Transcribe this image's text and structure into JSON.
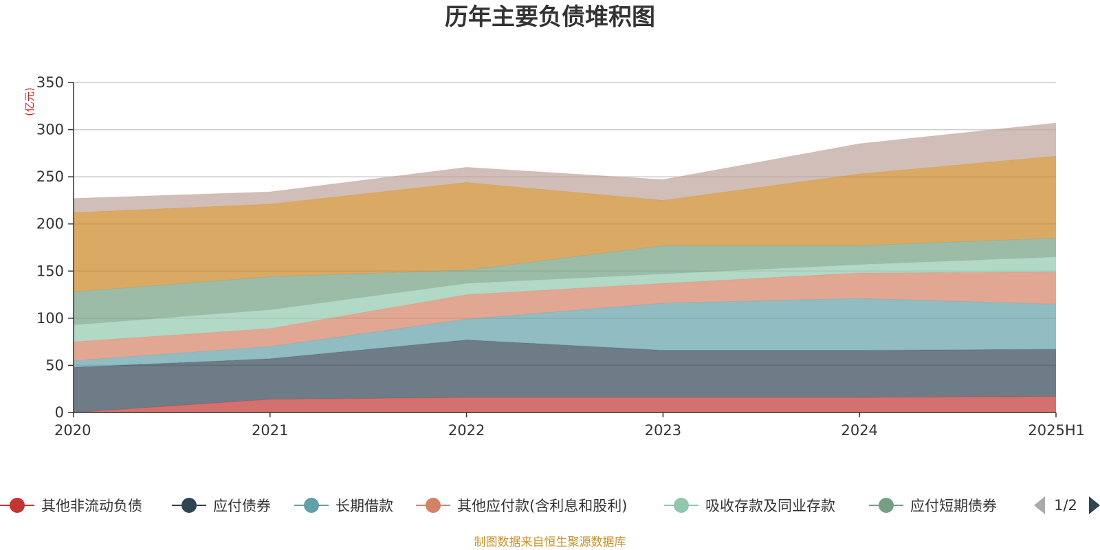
{
  "chart_data": {
    "type": "area",
    "stacked": true,
    "title": "历年主要负债堆积图",
    "unit": "(亿元)",
    "x": [
      "2020",
      "2021",
      "2022",
      "2023",
      "2024",
      "2025H1"
    ],
    "ylim": [
      0,
      350
    ],
    "yticks": [
      0,
      50,
      100,
      150,
      200,
      250,
      300,
      350
    ],
    "grid": true,
    "series": [
      {
        "name": "其他非流动负债",
        "color": "#c23531",
        "values": [
          0,
          14,
          16,
          16,
          16,
          17
        ]
      },
      {
        "name": "应付债券",
        "color": "#2f4554",
        "values": [
          48,
          43,
          61,
          50,
          50,
          50
        ]
      },
      {
        "name": "长期借款",
        "color": "#61a0a8",
        "values": [
          7,
          13,
          22,
          50,
          55,
          48
        ]
      },
      {
        "name": "其他应付款(含利息和股利)",
        "color": "#d48265",
        "values": [
          20,
          19,
          26,
          21,
          27,
          34
        ]
      },
      {
        "name": "吸收存款及同业存款",
        "color": "#91c7ae",
        "values": [
          18,
          20,
          12,
          10,
          9,
          16
        ]
      },
      {
        "name": "应付短期债券",
        "color": "#749f83",
        "values": [
          35,
          35,
          14,
          30,
          20,
          20
        ]
      },
      {
        "name": "",
        "color": "#ca8622",
        "values": [
          84,
          77,
          93,
          48,
          76,
          87
        ]
      },
      {
        "name": "",
        "color": "#bda29a",
        "values": [
          15,
          13,
          16,
          22,
          32,
          35
        ]
      }
    ]
  },
  "legend": {
    "page": "1/2"
  },
  "footer": {
    "source": "制图数据来自恒生聚源数据库"
  }
}
